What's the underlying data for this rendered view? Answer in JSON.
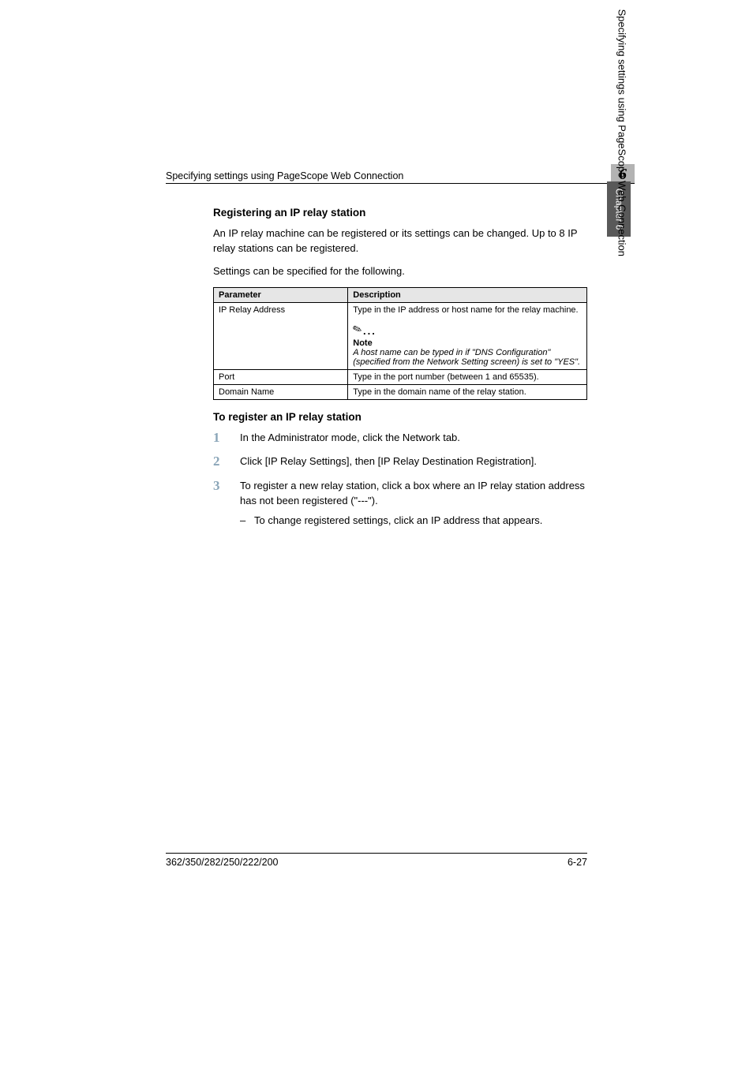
{
  "runningHead": {
    "title": "Specifying settings using PageScope Web Connection",
    "chapterNumber": "6"
  },
  "sideTab": "Chapter 6",
  "sideText": "Specifying settings using PageScope Web Connection",
  "section": {
    "heading1": "Registering an IP relay station",
    "para1": "An IP relay machine can be registered or its settings can be changed. Up to 8 IP relay stations can be registered.",
    "para2": "Settings can be specified for the following.",
    "table": {
      "headers": {
        "col1": "Parameter",
        "col2": "Description"
      },
      "rows": [
        {
          "param": "IP Relay Address",
          "desc": "Type in the IP address or host name for the relay machine.",
          "note": {
            "title": "Note",
            "body": "A host name can be typed in if \"DNS Configuration\" (specified from the Network Setting screen) is set to \"YES\"."
          }
        },
        {
          "param": "Port",
          "desc": "Type in the port number (between 1 and 65535)."
        },
        {
          "param": "Domain Name",
          "desc": "Type in the domain name of the relay station."
        }
      ]
    },
    "heading2": "To register an IP relay station",
    "steps": [
      {
        "num": "1",
        "text": "In the Administrator mode, click the Network tab."
      },
      {
        "num": "2",
        "text": "Click [IP Relay Settings], then [IP Relay Destination Registration]."
      },
      {
        "num": "3",
        "text": "To register a new relay station, click a box where an IP relay station address has not been registered (\"---\").",
        "sub": "To change registered settings, click an IP address that appears."
      }
    ]
  },
  "footer": {
    "left": "362/350/282/250/222/200",
    "right": "6-27"
  },
  "colors": {
    "tabBg": "#595959",
    "stepNum": "#8aa5b8",
    "headerBg": "#e6e6e6",
    "chapterBoxBg": "#b3b3b3"
  }
}
